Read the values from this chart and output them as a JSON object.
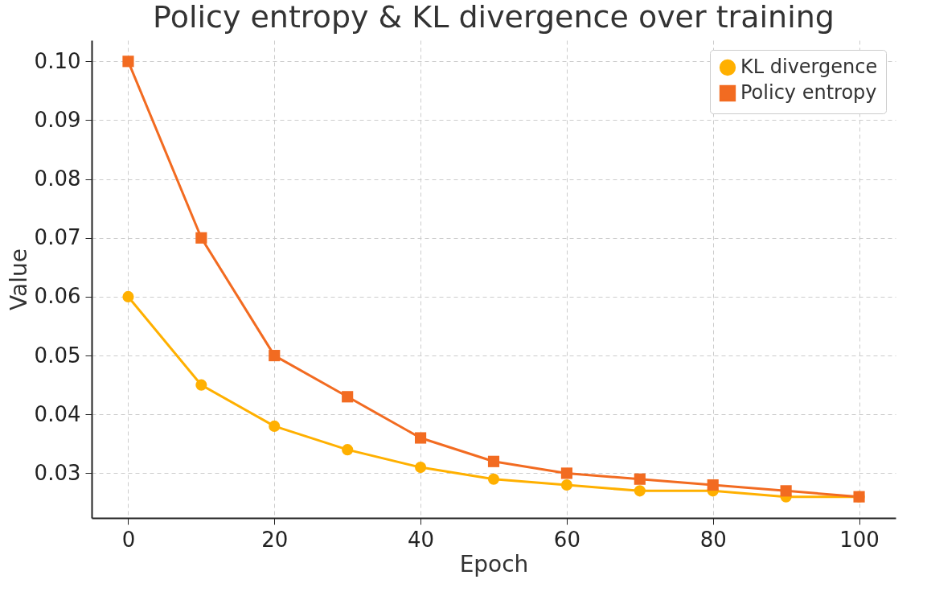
{
  "chart_data": {
    "type": "line",
    "title": "Policy entropy & KL divergence over training",
    "xlabel": "Epoch",
    "ylabel": "Value",
    "x": [
      0,
      10,
      20,
      30,
      40,
      50,
      60,
      70,
      80,
      90,
      100
    ],
    "series": [
      {
        "name": "KL divergence",
        "color": "#ffb000",
        "marker": "circle",
        "values": [
          0.06,
          0.045,
          0.038,
          0.034,
          0.031,
          0.029,
          0.028,
          0.027,
          0.027,
          0.026,
          0.026
        ]
      },
      {
        "name": "Policy entropy",
        "color": "#f26b21",
        "marker": "square",
        "values": [
          0.1,
          0.07,
          0.05,
          0.043,
          0.036,
          0.032,
          0.03,
          0.029,
          0.028,
          0.027,
          0.026
        ]
      }
    ],
    "xlim": [
      -5,
      105
    ],
    "xticks": [
      0,
      20,
      40,
      60,
      80,
      100
    ],
    "ylim": [
      0.0224,
      0.1036
    ],
    "yticks": [
      0.03,
      0.04,
      0.05,
      0.06,
      0.07,
      0.08,
      0.09,
      {
        "value": 0.1,
        "label": "0.10"
      }
    ],
    "grid": true,
    "legend": "top right",
    "line_style": "solid"
  }
}
